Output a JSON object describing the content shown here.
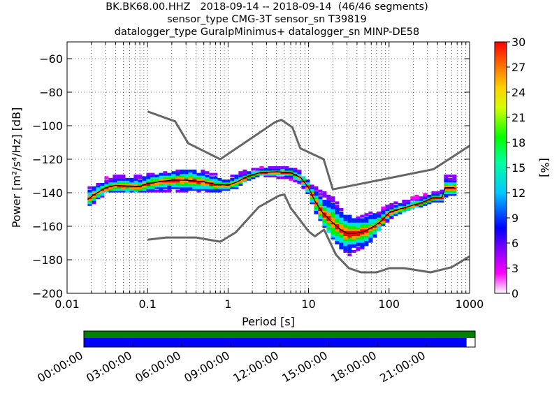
{
  "chart_data": {
    "type": "heatmap",
    "title_lines": [
      "BK.BK68.00.HHZ   2018-09-14 -- 2018-09-14  (46/46 segments)",
      "sensor_type CMG-3T sensor_sn T39819",
      "datalogger_type GuralpMinimus+ datalogger_sn MINP-DE58"
    ],
    "xlabel": "Period [s]",
    "ylabel": "Power [m²/s⁴/Hz] [dB]",
    "x_scale": "log",
    "xlim": [
      0.01,
      1000
    ],
    "ylim": [
      -200,
      -50
    ],
    "x_ticks": [
      {
        "value": 0.01,
        "label": "0.01"
      },
      {
        "value": 0.1,
        "label": "0.1"
      },
      {
        "value": 1,
        "label": "1"
      },
      {
        "value": 10,
        "label": "10"
      },
      {
        "value": 100,
        "label": "100"
      },
      {
        "value": 1000,
        "label": "1000"
      }
    ],
    "y_ticks": [
      {
        "value": -60,
        "label": "−60"
      },
      {
        "value": -80,
        "label": "−80"
      },
      {
        "value": -100,
        "label": "−100"
      },
      {
        "value": -120,
        "label": "−120"
      },
      {
        "value": -140,
        "label": "−140"
      },
      {
        "value": -160,
        "label": "−160"
      },
      {
        "value": -180,
        "label": "−180"
      },
      {
        "value": -200,
        "label": "−200"
      }
    ],
    "grid": "dotted",
    "colorbar": {
      "label": "[%]",
      "range": [
        0,
        30
      ],
      "ticks": [
        "0",
        "3",
        "6",
        "9",
        "12",
        "15",
        "18",
        "21",
        "24",
        "27",
        "30"
      ]
    },
    "noise_models": [
      {
        "name": "high",
        "points": [
          [
            0.1,
            -91.5
          ],
          [
            0.22,
            -97.4
          ],
          [
            0.32,
            -110.5
          ],
          [
            0.8,
            -120
          ],
          [
            3.8,
            -98
          ],
          [
            4.6,
            -96.5
          ],
          [
            6.3,
            -101
          ],
          [
            7.9,
            -113.5
          ],
          [
            15.4,
            -120
          ],
          [
            20,
            -138
          ],
          [
            354.8,
            -126
          ],
          [
            1000,
            -112
          ]
        ]
      },
      {
        "name": "low",
        "points": [
          [
            0.1,
            -168
          ],
          [
            0.17,
            -166.7
          ],
          [
            0.4,
            -166.7
          ],
          [
            0.8,
            -169.2
          ],
          [
            1.24,
            -163.7
          ],
          [
            2.4,
            -148.6
          ],
          [
            4.3,
            -141.7
          ],
          [
            5,
            -141.1
          ],
          [
            6,
            -149
          ],
          [
            10,
            -163
          ],
          [
            12,
            -166
          ],
          [
            15.6,
            -162
          ],
          [
            21.9,
            -177
          ],
          [
            31.6,
            -185
          ],
          [
            45,
            -187.5
          ],
          [
            70,
            -187.5
          ],
          [
            101,
            -185
          ],
          [
            154,
            -185
          ],
          [
            328,
            -187.5
          ],
          [
            600,
            -184.4
          ],
          [
            1000,
            -178
          ]
        ]
      }
    ],
    "mode_curve": [
      [
        0.018,
        -144
      ],
      [
        0.022,
        -141
      ],
      [
        0.03,
        -137
      ],
      [
        0.04,
        -135.6
      ],
      [
        0.06,
        -136
      ],
      [
        0.08,
        -136.2
      ],
      [
        0.1,
        -134.5
      ],
      [
        0.15,
        -133.2
      ],
      [
        0.2,
        -132.5
      ],
      [
        0.3,
        -132.5
      ],
      [
        0.5,
        -133.5
      ],
      [
        0.7,
        -135
      ],
      [
        1,
        -135.5
      ],
      [
        1.3,
        -133.5
      ],
      [
        1.8,
        -130
      ],
      [
        2.5,
        -128
      ],
      [
        4,
        -127.5
      ],
      [
        6,
        -128
      ],
      [
        8,
        -131
      ],
      [
        10,
        -137
      ],
      [
        12,
        -145
      ],
      [
        15,
        -152
      ],
      [
        20,
        -158
      ],
      [
        25,
        -162
      ],
      [
        30,
        -164.2
      ],
      [
        40,
        -164
      ],
      [
        50,
        -163
      ],
      [
        65,
        -160
      ],
      [
        80,
        -157
      ],
      [
        100,
        -152
      ],
      [
        130,
        -150
      ],
      [
        180,
        -148
      ],
      [
        250,
        -146
      ],
      [
        350,
        -143
      ],
      [
        450,
        -143
      ],
      [
        500,
        -137
      ],
      [
        650,
        -137
      ]
    ],
    "density_bands": [
      {
        "label": "low",
        "points": [
          [
            0.018,
            -148
          ],
          [
            0.022,
            -146
          ],
          [
            0.03,
            -139
          ],
          [
            0.04,
            -138
          ],
          [
            0.06,
            -139
          ],
          [
            0.1,
            -139
          ],
          [
            0.2,
            -138
          ],
          [
            0.3,
            -139
          ],
          [
            0.5,
            -139
          ],
          [
            0.7,
            -139
          ],
          [
            1,
            -138
          ],
          [
            1.3,
            -137
          ],
          [
            1.8,
            -132
          ],
          [
            2.5,
            -130
          ],
          [
            4,
            -130
          ],
          [
            6,
            -131
          ],
          [
            8,
            -134
          ],
          [
            10,
            -141
          ],
          [
            12,
            -150
          ],
          [
            15,
            -158
          ],
          [
            20,
            -166
          ],
          [
            25,
            -172
          ],
          [
            30,
            -177
          ],
          [
            40,
            -174
          ],
          [
            50,
            -172
          ],
          [
            65,
            -166
          ],
          [
            80,
            -160
          ],
          [
            100,
            -155
          ],
          [
            130,
            -152
          ],
          [
            180,
            -149
          ],
          [
            250,
            -147
          ],
          [
            350,
            -145
          ],
          [
            450,
            -145
          ],
          [
            500,
            -142
          ],
          [
            650,
            -140
          ]
        ]
      },
      {
        "label": "high",
        "points": [
          [
            0.018,
            -138
          ],
          [
            0.022,
            -137
          ],
          [
            0.03,
            -132
          ],
          [
            0.04,
            -130
          ],
          [
            0.06,
            -130
          ],
          [
            0.1,
            -130
          ],
          [
            0.2,
            -128
          ],
          [
            0.3,
            -126
          ],
          [
            0.5,
            -128
          ],
          [
            0.7,
            -130
          ],
          [
            1,
            -132
          ],
          [
            1.3,
            -129
          ],
          [
            1.8,
            -127
          ],
          [
            2.5,
            -126
          ],
          [
            4,
            -125.5
          ],
          [
            6,
            -126
          ],
          [
            8,
            -128
          ],
          [
            10,
            -133
          ],
          [
            12,
            -137
          ],
          [
            15,
            -140
          ],
          [
            20,
            -142
          ],
          [
            25,
            -150
          ],
          [
            30,
            -154
          ],
          [
            40,
            -156
          ],
          [
            50,
            -154
          ],
          [
            65,
            -152
          ],
          [
            80,
            -150
          ],
          [
            100,
            -148
          ],
          [
            130,
            -146
          ],
          [
            180,
            -144
          ],
          [
            250,
            -142
          ],
          [
            350,
            -140
          ],
          [
            450,
            -140
          ],
          [
            500,
            -131
          ],
          [
            650,
            -130
          ]
        ]
      }
    ],
    "coverage": {
      "time_ticks": [
        "00:00:00",
        "03:00:00",
        "06:00:00",
        "09:00:00",
        "12:00:00",
        "15:00:00",
        "18:00:00",
        "21:00:00"
      ],
      "data_fraction": 0.978,
      "colors": {
        "data": "#0000ff",
        "psd": "#008000"
      }
    }
  }
}
